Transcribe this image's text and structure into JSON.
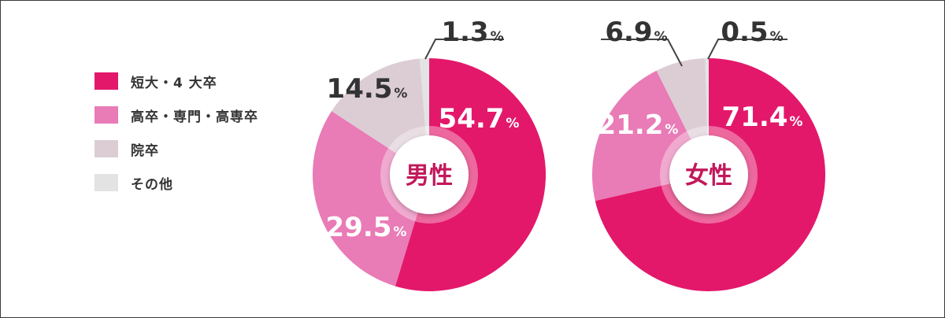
{
  "legend": [
    {
      "label": "短大・4 大卒",
      "color": "#e3186b"
    },
    {
      "label": "高卒・専門・高専卒",
      "color": "#e97bb6"
    },
    {
      "label": "院卒",
      "color": "#dccdd5"
    },
    {
      "label": "その他",
      "color": "#e3e3e3"
    }
  ],
  "chart_data": [
    {
      "type": "pie",
      "title": "男性",
      "categories": [
        "短大・4 大卒",
        "高卒・専門・高専卒",
        "院卒",
        "その他"
      ],
      "values": [
        54.7,
        29.5,
        14.5,
        1.3
      ],
      "labels": [
        "54.7",
        "29.5",
        "14.5",
        "1.3"
      ],
      "unit": "%",
      "colors": [
        "#e3186b",
        "#e97bb6",
        "#dccdd5",
        "#e3e3e3"
      ]
    },
    {
      "type": "pie",
      "title": "女性",
      "categories": [
        "短大・4 大卒",
        "高卒・専門・高専卒",
        "院卒",
        "その他"
      ],
      "values": [
        71.4,
        21.2,
        6.9,
        0.5
      ],
      "labels": [
        "71.4",
        "21.2",
        "6.9",
        "0.5"
      ],
      "unit": "%",
      "colors": [
        "#e3186b",
        "#e97bb6",
        "#dccdd5",
        "#e3e3e3"
      ]
    }
  ]
}
